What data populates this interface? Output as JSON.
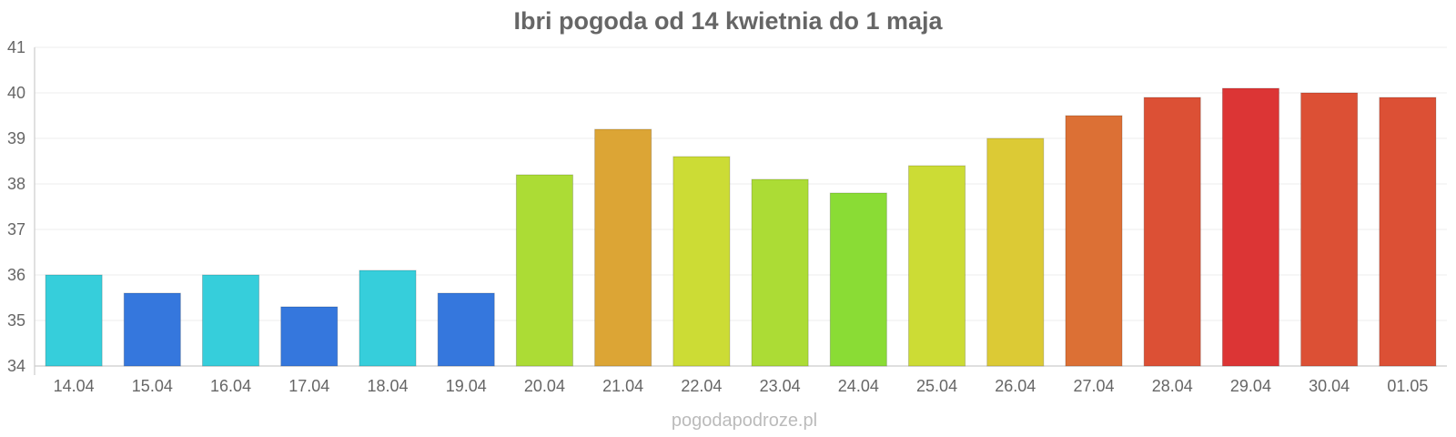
{
  "chart_data": {
    "type": "bar",
    "title": "Ibri pogoda od 14 kwietnia do 1 maja",
    "xlabel": "",
    "ylabel": "",
    "ylim": [
      34,
      41
    ],
    "y_ticks": [
      "34",
      "35",
      "36",
      "37",
      "38",
      "39",
      "40",
      "41"
    ],
    "grid": true,
    "legend": "none",
    "categories": [
      "14.04",
      "15.04",
      "16.04",
      "17.04",
      "18.04",
      "19.04",
      "20.04",
      "21.04",
      "22.04",
      "23.04",
      "24.04",
      "25.04",
      "26.04",
      "27.04",
      "28.04",
      "29.04",
      "30.04",
      "01.05"
    ],
    "values": [
      36.0,
      35.6,
      36.0,
      35.3,
      36.1,
      35.6,
      38.2,
      39.2,
      38.6,
      38.1,
      37.8,
      38.4,
      39.0,
      39.5,
      39.9,
      40.1,
      40.0,
      39.9
    ],
    "colors": [
      "#36CEDB",
      "#3577DD",
      "#36CEDB",
      "#3577DD",
      "#36CEDB",
      "#3577DD",
      "#ACDC35",
      "#DCA535",
      "#CCDC35",
      "#ACDC35",
      "#8ADC35",
      "#CCDC35",
      "#DCCA35",
      "#DC7035",
      "#DC5035",
      "#DC3535",
      "#DC5035",
      "#DC5035"
    ]
  },
  "watermark": "pogodapodroze.pl"
}
